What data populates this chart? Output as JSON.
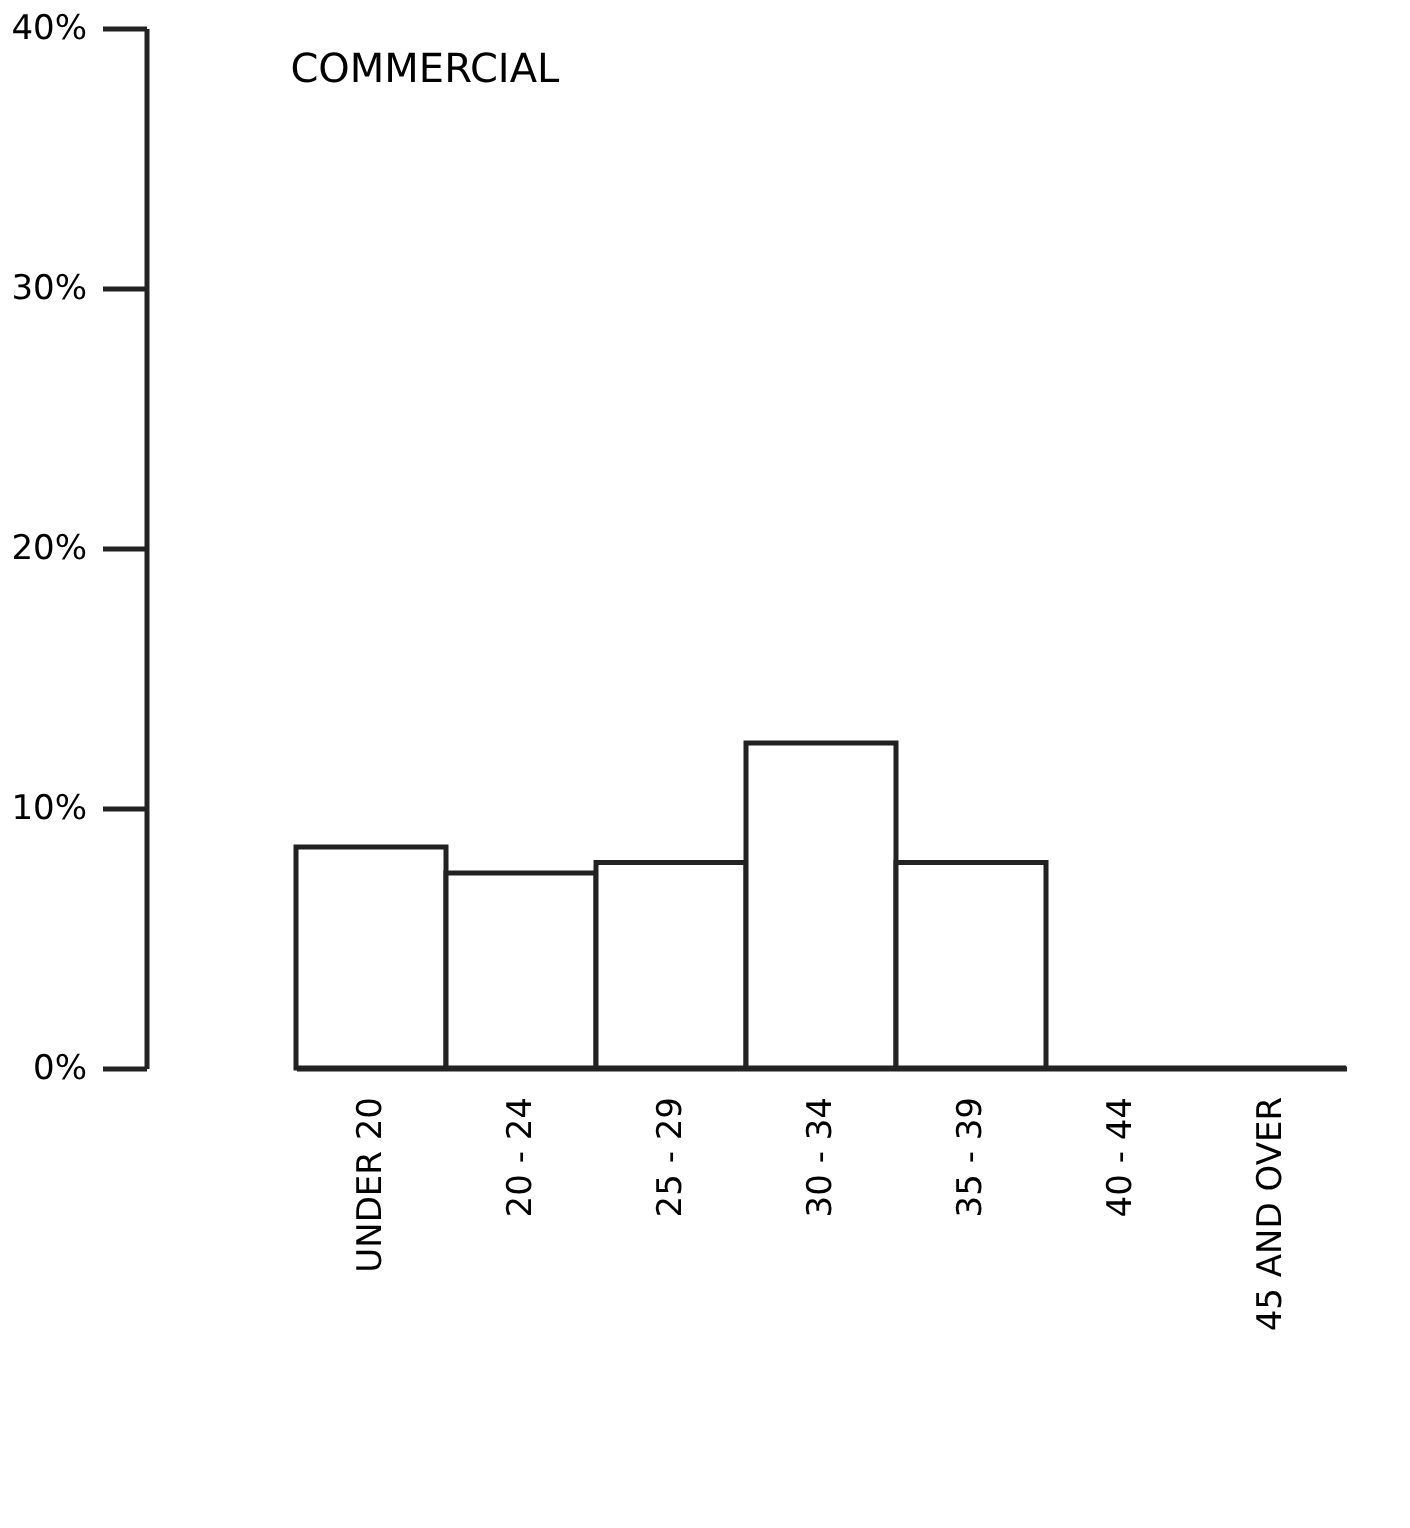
{
  "chart_data": {
    "type": "bar",
    "title": "COMMERCIAL",
    "categories": [
      "UNDER 20",
      "20 - 24",
      "25 - 29",
      "30 - 34",
      "35 - 39",
      "40 - 44",
      "45 AND OVER"
    ],
    "values": [
      8.5,
      7.5,
      7.9,
      12.5,
      7.9,
      0,
      0
    ],
    "color": "#ffffff",
    "ylim": [
      0,
      40
    ],
    "yticks": [
      {
        "value": 0,
        "label": "0%"
      },
      {
        "value": 10,
        "label": "10%"
      },
      {
        "value": 20,
        "label": "20%"
      },
      {
        "value": 30,
        "label": "30%"
      },
      {
        "value": 40,
        "label": "40%"
      }
    ],
    "grid": false
  }
}
